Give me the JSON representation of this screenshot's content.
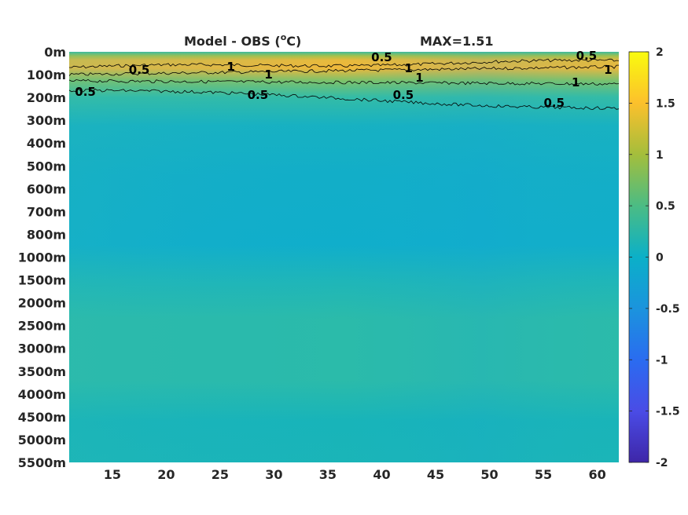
{
  "chart_data": {
    "type": "heatmap",
    "title": "Model - OBS (",
    "title_unit_sup": "o",
    "title_unit_tail": "C)",
    "annotation": "MAX=1.51",
    "x_ticks": [
      15,
      20,
      25,
      30,
      35,
      40,
      45,
      50,
      55,
      60
    ],
    "xlim": [
      11,
      62
    ],
    "y_tick_labels": [
      "0m",
      "100m",
      "200m",
      "300m",
      "400m",
      "500m",
      "600m",
      "700m",
      "800m",
      "1000m",
      "1500m",
      "2000m",
      "2500m",
      "3000m",
      "3500m",
      "4000m",
      "4500m",
      "5000m",
      "5500m"
    ],
    "colorbar": {
      "ticks": [
        "2",
        "1.5",
        "1",
        "0.5",
        "0",
        "-0.5",
        "-1",
        "-1.5",
        "-2"
      ],
      "range": [
        -2,
        2
      ],
      "colormap": "parula"
    },
    "contour_levels": [
      0.5,
      1
    ],
    "contour_labels": [
      {
        "text": "0.5",
        "x": 17.5,
        "level": "100m"
      },
      {
        "text": "0.5",
        "x": 12.5,
        "level": "200m"
      },
      {
        "text": "1",
        "x": 26,
        "level": "100m"
      },
      {
        "text": "1",
        "x": 29.5,
        "level": "100m"
      },
      {
        "text": "0.5",
        "x": 28.5,
        "level": "200m"
      },
      {
        "text": "0.5",
        "x": 40,
        "level": "0m"
      },
      {
        "text": "1",
        "x": 42.5,
        "level": "100m"
      },
      {
        "text": "1",
        "x": 43.5,
        "level": "100m"
      },
      {
        "text": "0.5",
        "x": 42,
        "level": "200m"
      },
      {
        "text": "0.5",
        "x": 59,
        "level": "0m"
      },
      {
        "text": "1",
        "x": 61,
        "level": "100m"
      },
      {
        "text": "1",
        "x": 58,
        "level": "100m"
      },
      {
        "text": "0.5",
        "x": 56,
        "level": "200m"
      }
    ],
    "field_description": {
      "surface_0_100m": 0.4,
      "core_100m": 1.2,
      "below_300m": 0.1,
      "mid_1000m": -0.1,
      "deep_2000_3000m": 0.2,
      "bottom_5000m": 0.05
    },
    "grid": false
  }
}
